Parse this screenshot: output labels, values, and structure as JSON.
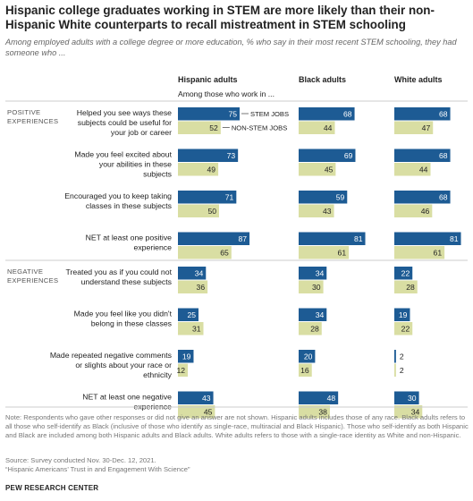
{
  "title": "Hispanic college graduates working in STEM are more likely than their non-Hispanic White counterparts to recall mistreatment in STEM schooling",
  "subtitle": "Among employed adults with a college degree or more education, % who say in their most recent STEM schooling, they had someone who ...",
  "colors": {
    "stem": "#1d5b94",
    "non_stem": "#d9dea3",
    "divider": "#cccccc",
    "text": "#222222"
  },
  "chart_data": {
    "type": "bar",
    "orientation": "horizontal",
    "columns": [
      "Hispanic adults",
      "Black adults",
      "White adults"
    ],
    "column_subheader": "Among those who work in ...",
    "series_labels": [
      "STEM JOBS",
      "NON-STEM JOBS"
    ],
    "sections": [
      {
        "label": "POSITIVE EXPERIENCES",
        "items": [
          {
            "label": "Helped you see ways these subjects could be useful for your job or career",
            "stem": [
              75,
              68,
              68
            ],
            "non_stem": [
              52,
              44,
              47
            ]
          },
          {
            "label": "Made you feel excited about your abilities in these subjects",
            "stem": [
              73,
              69,
              68
            ],
            "non_stem": [
              49,
              45,
              44
            ]
          },
          {
            "label": "Encouraged you to keep taking classes in these subjects",
            "stem": [
              71,
              59,
              68
            ],
            "non_stem": [
              50,
              43,
              46
            ]
          },
          {
            "label": "NET at least one positive experience",
            "stem": [
              87,
              81,
              81
            ],
            "non_stem": [
              65,
              61,
              61
            ]
          }
        ]
      },
      {
        "label": "NEGATIVE EXPERIENCES",
        "items": [
          {
            "label": "Treated you as if you could not understand these subjects",
            "stem": [
              34,
              34,
              22
            ],
            "non_stem": [
              36,
              30,
              28
            ]
          },
          {
            "label": "Made you feel like you didn't belong in these classes",
            "stem": [
              25,
              34,
              19
            ],
            "non_stem": [
              31,
              28,
              22
            ]
          },
          {
            "label": "Made repeated negative comments or slights about your race or ethnicity",
            "stem": [
              19,
              20,
              2
            ],
            "non_stem": [
              12,
              16,
              2
            ]
          },
          {
            "label": "NET at least one negative experience",
            "stem": [
              43,
              48,
              30
            ],
            "non_stem": [
              45,
              38,
              34
            ]
          }
        ]
      }
    ]
  },
  "footer": {
    "note": "Note: Respondents who gave other responses or did not give an answer are not shown. Hispanic adults includes those of any race. Black adults refers to all those who self-identify as Black (inclusive of those who identify as single-race, multiracial and Black Hispanic). Those who self-identify as both Hispanic and Black are included among both Hispanic adults and Black adults. White adults refers to those with a single-race identity as White and non-Hispanic.",
    "source": "Source: Survey conducted Nov. 30-Dec. 12, 2021.",
    "report": "“Hispanic Americans’ Trust in and Engagement With Science”",
    "brand": "PEW RESEARCH CENTER"
  }
}
